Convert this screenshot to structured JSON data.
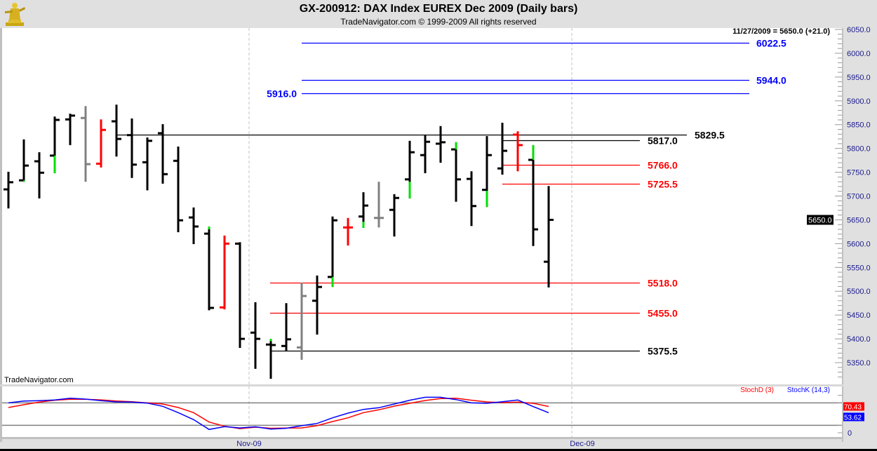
{
  "header": {
    "title": "GX-200912:  DAX Index EUREX Dec 2009  (Daily bars)",
    "subtitle": "TradeNavigator.com © 1999-2009 All rights reserved",
    "logo": "gold-trader-statue-logo"
  },
  "info_readout": "11/27/2009 = 5650.0 (+21.0)",
  "watermark": "TradeNavigator.com",
  "last_price_label": "5650.0",
  "colors": {
    "up_signal": "#00e000",
    "red_bar": "#ff0000",
    "gray_bar": "#808080",
    "bar": "#000000",
    "axis_text": "#1a1a8c",
    "stoch_d": "#ff0000",
    "stoch_k": "#0000ff",
    "level_blue": "#0000ff",
    "level_red": "#ff0000",
    "level_black": "#000000"
  },
  "chart_data": [
    {
      "type": "ohlc",
      "title": "GX-200912:  DAX Index EUREX Dec 2009  (Daily bars)",
      "ylim": [
        5310,
        6060
      ],
      "y_ticks": [
        "6050.0",
        "6000.0",
        "5950.0",
        "5900.0",
        "5850.0",
        "5800.0",
        "5750.0",
        "5700.0",
        "5650.0",
        "5600.0",
        "5550.0",
        "5500.0",
        "5450.0",
        "5400.0",
        "5350.0"
      ],
      "x_ticks": [
        "Nov-09",
        "Dec-09"
      ],
      "grid": "vertical dashed at month starts",
      "bars": [
        {
          "date": "2009-10-09",
          "o": 5714,
          "h": 5751,
          "l": 5674,
          "c": 5729,
          "color": "black"
        },
        {
          "date": "2009-10-12",
          "o": 5733,
          "h": 5819,
          "l": 5730,
          "c": 5764,
          "color": "black",
          "signal": [
            5730,
            5733
          ]
        },
        {
          "date": "2009-10-13",
          "o": 5773,
          "h": 5792,
          "l": 5695,
          "c": 5749,
          "color": "black"
        },
        {
          "date": "2009-10-14",
          "o": 5785,
          "h": 5867,
          "l": 5748,
          "c": 5860,
          "color": "black",
          "signal": [
            5748,
            5785
          ]
        },
        {
          "date": "2009-10-15",
          "o": 5861,
          "h": 5873,
          "l": 5807,
          "c": 5869,
          "color": "black"
        },
        {
          "date": "2009-10-16",
          "o": 5864,
          "h": 5889,
          "l": 5730,
          "c": 5767,
          "color": "gray"
        },
        {
          "date": "2009-10-19",
          "o": 5768,
          "h": 5861,
          "l": 5760,
          "c": 5839,
          "color": "red"
        },
        {
          "date": "2009-10-20",
          "o": 5857,
          "h": 5892,
          "l": 5783,
          "c": 5820,
          "color": "black"
        },
        {
          "date": "2009-10-21",
          "o": 5828,
          "h": 5863,
          "l": 5738,
          "c": 5766,
          "color": "black"
        },
        {
          "date": "2009-10-22",
          "o": 5771,
          "h": 5823,
          "l": 5712,
          "c": 5816,
          "color": "black"
        },
        {
          "date": "2009-10-23",
          "o": 5832,
          "h": 5851,
          "l": 5726,
          "c": 5746,
          "color": "black"
        },
        {
          "date": "2009-10-26",
          "o": 5774,
          "h": 5804,
          "l": 5624,
          "c": 5649,
          "color": "black"
        },
        {
          "date": "2009-10-27",
          "o": 5655,
          "h": 5676,
          "l": 5599,
          "c": 5636,
          "color": "black"
        },
        {
          "date": "2009-10-28",
          "o": 5621,
          "h": 5636,
          "l": 5460,
          "c": 5465,
          "color": "black",
          "signal": [
            5630,
            5636
          ]
        },
        {
          "date": "2009-10-29",
          "o": 5466,
          "h": 5617,
          "l": 5462,
          "c": 5600,
          "color": "red"
        },
        {
          "date": "2009-10-30",
          "o": 5600,
          "h": 5603,
          "l": 5381,
          "c": 5400,
          "color": "black"
        },
        {
          "date": "2009-11-02",
          "o": 5413,
          "h": 5477,
          "l": 5337,
          "c": 5400,
          "color": "black"
        },
        {
          "date": "2009-11-03",
          "o": 5388,
          "h": 5400,
          "l": 5316,
          "c": 5387,
          "color": "black",
          "signal": [
            5395,
            5400
          ]
        },
        {
          "date": "2009-11-04",
          "o": 5385,
          "h": 5475,
          "l": 5375,
          "c": 5399,
          "color": "black"
        },
        {
          "date": "2009-11-05",
          "o": 5382,
          "h": 5518,
          "l": 5356,
          "c": 5490,
          "color": "gray"
        },
        {
          "date": "2009-11-06",
          "o": 5480,
          "h": 5533,
          "l": 5409,
          "c": 5509,
          "color": "black"
        },
        {
          "date": "2009-11-09",
          "o": 5530,
          "h": 5657,
          "l": 5509,
          "c": 5649,
          "color": "black",
          "signal": [
            5509,
            5530
          ]
        },
        {
          "date": "2009-11-10",
          "o": 5634,
          "h": 5654,
          "l": 5596,
          "c": 5634,
          "color": "red"
        },
        {
          "date": "2009-11-11",
          "o": 5657,
          "h": 5708,
          "l": 5633,
          "c": 5680,
          "color": "black",
          "signal": [
            5633,
            5646
          ]
        },
        {
          "date": "2009-11-12",
          "o": 5654,
          "h": 5730,
          "l": 5634,
          "c": 5654,
          "color": "gray"
        },
        {
          "date": "2009-11-13",
          "o": 5671,
          "h": 5704,
          "l": 5615,
          "c": 5696,
          "color": "black"
        },
        {
          "date": "2009-11-16",
          "o": 5735,
          "h": 5816,
          "l": 5695,
          "c": 5792,
          "color": "black",
          "signal": [
            5695,
            5730
          ]
        },
        {
          "date": "2009-11-17",
          "o": 5786,
          "h": 5829,
          "l": 5748,
          "c": 5814,
          "color": "black"
        },
        {
          "date": "2009-11-18",
          "o": 5810,
          "h": 5847,
          "l": 5770,
          "c": 5813,
          "color": "black"
        },
        {
          "date": "2009-11-19",
          "o": 5798,
          "h": 5813,
          "l": 5688,
          "c": 5735,
          "color": "black",
          "signal": [
            5798,
            5813
          ]
        },
        {
          "date": "2009-11-20",
          "o": 5736,
          "h": 5752,
          "l": 5637,
          "c": 5679,
          "color": "black"
        },
        {
          "date": "2009-11-23",
          "o": 5713,
          "h": 5826,
          "l": 5677,
          "c": 5786,
          "color": "black",
          "signal": [
            5677,
            5711
          ]
        },
        {
          "date": "2009-11-24",
          "o": 5758,
          "h": 5854,
          "l": 5745,
          "c": 5795,
          "color": "black"
        },
        {
          "date": "2009-11-25",
          "o": 5829,
          "h": 5836,
          "l": 5752,
          "c": 5807,
          "color": "red"
        },
        {
          "date": "2009-11-26",
          "o": 5776,
          "h": 5807,
          "l": 5595,
          "c": 5630,
          "color": "black",
          "signal": [
            5776,
            5807
          ]
        },
        {
          "date": "2009-11-27",
          "o": 5562,
          "h": 5721,
          "l": 5508,
          "c": 5650,
          "color": "black"
        }
      ],
      "levels": [
        {
          "value": 6022.5,
          "label": "6022.5",
          "color": "blue"
        },
        {
          "value": 5944.0,
          "label": "5944.0",
          "color": "blue"
        },
        {
          "value": 5916.0,
          "label": "5916.0",
          "color": "blue"
        },
        {
          "value": 5829.5,
          "label": "5829.5",
          "color": "black"
        },
        {
          "value": 5817.0,
          "label": "5817.0",
          "color": "black"
        },
        {
          "value": 5766.0,
          "label": "5766.0",
          "color": "red"
        },
        {
          "value": 5725.5,
          "label": "5725.5",
          "color": "red"
        },
        {
          "value": 5518.0,
          "label": "5518.0",
          "color": "red"
        },
        {
          "value": 5455.0,
          "label": "5455.0",
          "color": "red"
        },
        {
          "value": 5375.5,
          "label": "5375.5",
          "color": "black"
        }
      ]
    },
    {
      "type": "line",
      "ylim": [
        0,
        100
      ],
      "y_ticks": [
        "0"
      ],
      "reference_lines": [
        20,
        80
      ],
      "legend": "top-right",
      "series": [
        {
          "name": "StochD (3)",
          "color": "red",
          "last_label": "70.43",
          "values": [
            67.5,
            75,
            82,
            87,
            89.5,
            89.5,
            88,
            85,
            83,
            80,
            77,
            67.5,
            53.8,
            28.7,
            17.5,
            11,
            15,
            12,
            12.5,
            13,
            19,
            30,
            40,
            53.8,
            61.3,
            71.3,
            78.8,
            86.3,
            91.3,
            92.5,
            87,
            82.5,
            80.7,
            82,
            78.8,
            70.43
          ]
        },
        {
          "name": "StochK (14,3)",
          "color": "blue",
          "last_label": "53.62",
          "values": [
            80,
            85,
            86,
            87.6,
            92.5,
            90,
            85.7,
            82.5,
            82,
            79.4,
            70.7,
            53.8,
            35,
            8.8,
            16.3,
            13,
            16,
            10,
            12,
            19,
            25,
            40,
            52.5,
            62.5,
            67,
            77,
            87,
            95,
            95,
            88.8,
            80,
            78.8,
            83,
            87.6,
            70,
            53.62
          ]
        }
      ]
    }
  ]
}
